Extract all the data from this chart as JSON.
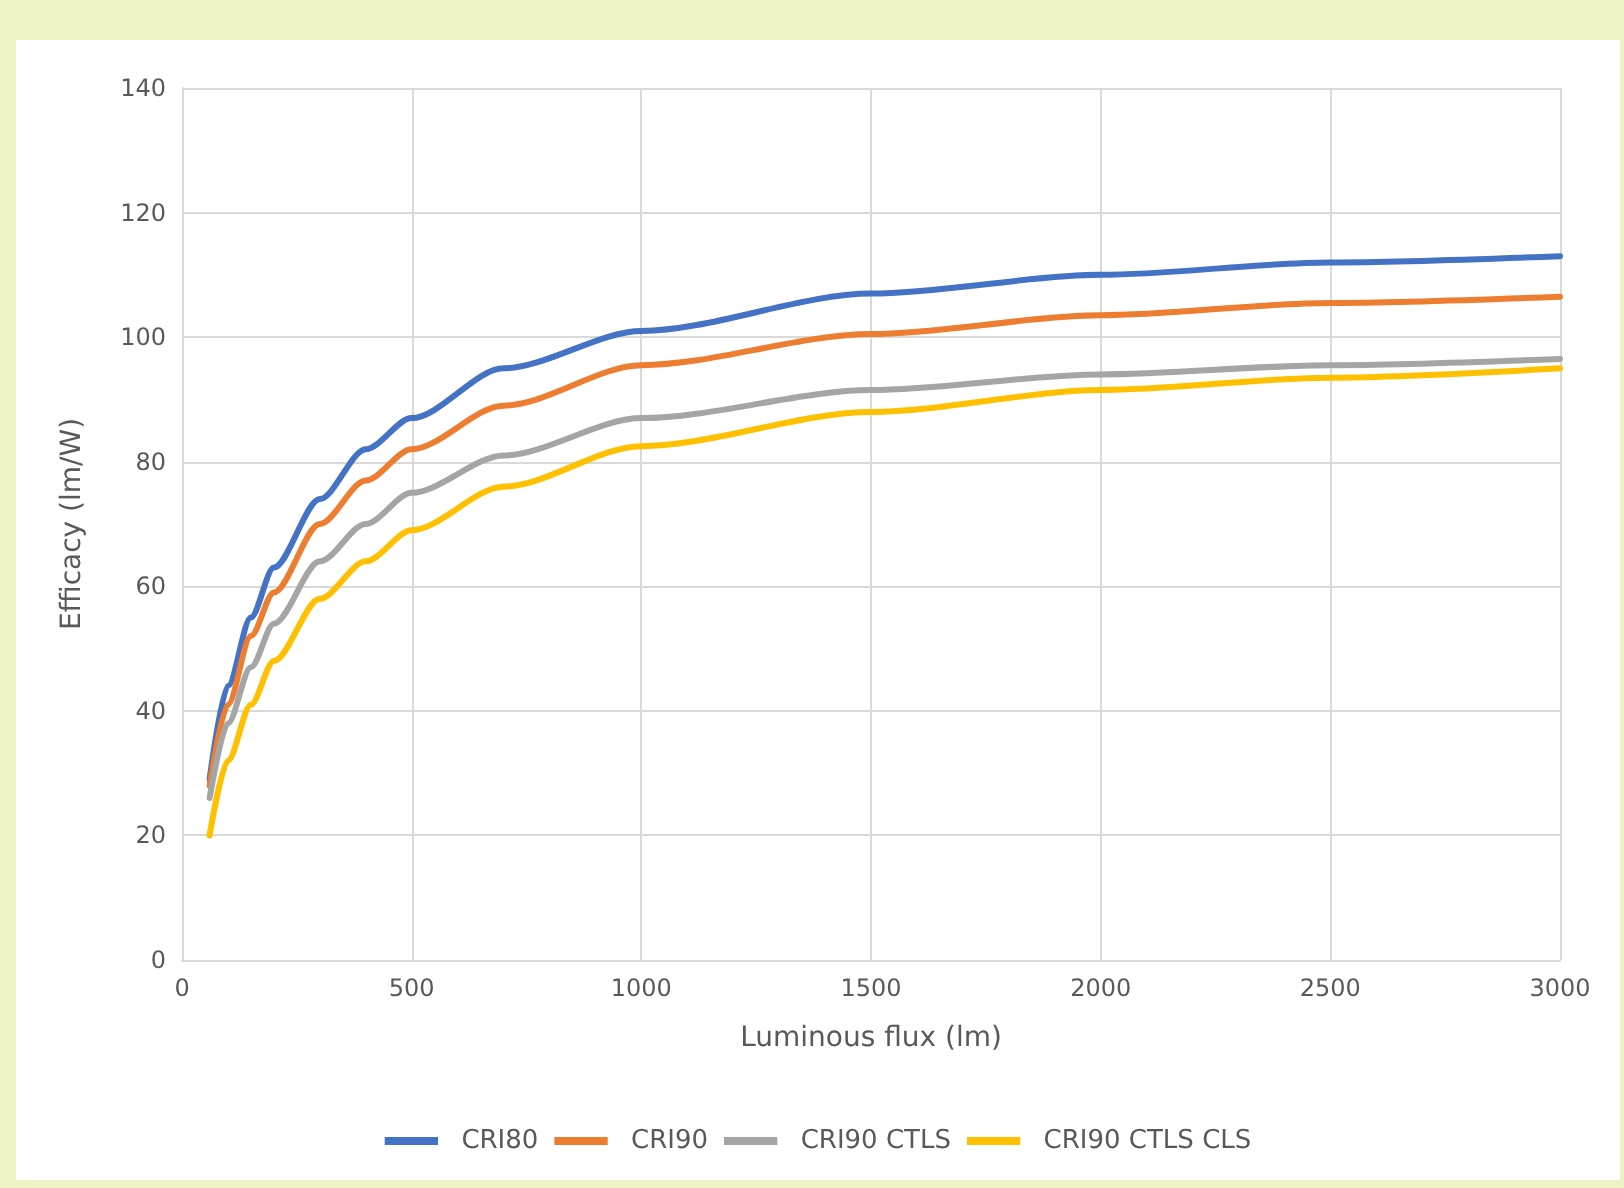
{
  "chart_data": {
    "type": "line",
    "xlabel": "Luminous flux (lm)",
    "ylabel": "Efficacy (lm/W)",
    "x": [
      60,
      100,
      150,
      200,
      300,
      400,
      500,
      700,
      1000,
      1500,
      2000,
      2500,
      3000
    ],
    "series": [
      {
        "name": "CRI80",
        "color": "#4472c4",
        "values": [
          29,
          44,
          55,
          63,
          74,
          82,
          87,
          95,
          101,
          107,
          110,
          112,
          113
        ]
      },
      {
        "name": "CRI90",
        "color": "#ed7d31",
        "values": [
          28,
          41,
          52,
          59,
          70,
          77,
          82,
          89,
          95.5,
          100.5,
          103.5,
          105.5,
          106.5
        ]
      },
      {
        "name": "CRI90 CTLS",
        "color": "#a5a5a5",
        "values": [
          26,
          38,
          47,
          54,
          64,
          70,
          75,
          81,
          87,
          91.5,
          94,
          95.5,
          96.5
        ]
      },
      {
        "name": "CRI90 CTLS CLS",
        "color": "#ffc000",
        "values": [
          20,
          32,
          41,
          48,
          58,
          64,
          69,
          76,
          82.5,
          88,
          91.5,
          93.5,
          95
        ]
      }
    ],
    "xlim": [
      0,
      3000
    ],
    "xticks": [
      0,
      500,
      1000,
      1500,
      2000,
      2500,
      3000
    ],
    "ylim": [
      0,
      140
    ],
    "yticks": [
      0,
      20,
      40,
      60,
      80,
      100,
      120,
      140
    ],
    "grid": true,
    "legend": "bottom",
    "marker": "none",
    "line_style": "solid"
  }
}
